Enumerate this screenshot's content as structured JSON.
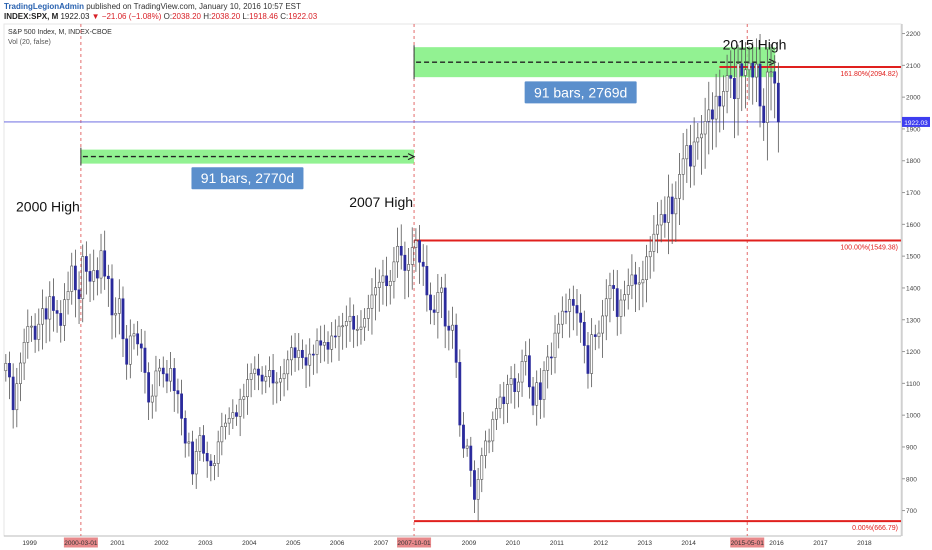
{
  "header": {
    "publisher": "TradingLegionAdmin",
    "published_text": "published on TradingView.com, January 10, 2016 10:57 EST",
    "symbol": "INDEX:SPX, M",
    "last": "1922.03",
    "change_arrow": "▼",
    "change": "−21.06 (−1.08%)",
    "open_label": "O:",
    "open": "2038.20",
    "high_label": "H:",
    "high": "2038.20",
    "low_label": "L:",
    "low": "1918.46",
    "close_label": "C:",
    "close": "1922.03"
  },
  "legend": {
    "series_title": "S&P 500 Index, M, INDEX-CBOE",
    "volume": "Vol (20, false)"
  },
  "colors": {
    "up": "#ffffff",
    "down": "#2b2b9c",
    "wick": "#555555",
    "fib": "#e0201e",
    "vline": "#e05c5c",
    "range_fill": "#7ff07f",
    "range_box": "#5b8fcc",
    "price_line": "#5a5adc"
  },
  "chart_data": {
    "type": "candlestick",
    "timeframe": "M",
    "x_range": [
      "1998-06",
      "2018-11"
    ],
    "x_tick_labels": [
      "998",
      "1999",
      "2000-03-01",
      "2001",
      "2002",
      "2003",
      "2004",
      "2005",
      "2006",
      "2007",
      "2007-10-01",
      "2009",
      "2010",
      "2011",
      "2012",
      "2013",
      "2014",
      "2015-05-01",
      "2016",
      "2017",
      "2018"
    ],
    "x_tick_values": [
      "1998-01",
      "1999-01",
      "2000-03",
      "2001-01",
      "2002-01",
      "2003-01",
      "2004-01",
      "2005-01",
      "2006-01",
      "2007-01",
      "2007-10",
      "2009-01",
      "2010-01",
      "2011-01",
      "2012-01",
      "2013-01",
      "2014-01",
      "2015-05",
      "2016-01",
      "2017-01",
      "2018-01"
    ],
    "x_highlight_labels": [
      "2000-03-01",
      "2007-10-01",
      "2015-05-01"
    ],
    "y_range": [
      620,
      2230
    ],
    "y_ticks": [
      700,
      800,
      900,
      1000,
      1100,
      1200,
      1300,
      1400,
      1500,
      1600,
      1700,
      1800,
      1900,
      2000,
      2100,
      2200
    ],
    "current_price": 1922.03,
    "current_price_label": "1922.03",
    "monthly_close": [
      [
        1998,
        1163
      ],
      [
        1998,
        1120
      ],
      [
        1998,
        1017
      ],
      [
        1998,
        1099
      ],
      [
        1998,
        1164
      ],
      [
        1998,
        1229
      ],
      [
        1998,
        1279
      ],
      [
        1999,
        1280
      ],
      [
        1999,
        1238
      ],
      [
        1999,
        1286
      ],
      [
        1999,
        1335
      ],
      [
        1999,
        1302
      ],
      [
        1999,
        1373
      ],
      [
        1999,
        1329
      ],
      [
        1999,
        1320
      ],
      [
        1999,
        1282
      ],
      [
        1999,
        1363
      ],
      [
        1999,
        1389
      ],
      [
        1999,
        1469
      ],
      [
        2000,
        1394
      ],
      [
        2000,
        1366
      ],
      [
        2000,
        1499
      ],
      [
        2000,
        1452
      ],
      [
        2000,
        1421
      ],
      [
        2000,
        1455
      ],
      [
        2000,
        1431
      ],
      [
        2000,
        1517
      ],
      [
        2000,
        1437
      ],
      [
        2000,
        1429
      ],
      [
        2000,
        1315
      ],
      [
        2000,
        1320
      ],
      [
        2001,
        1366
      ],
      [
        2001,
        1240
      ],
      [
        2001,
        1160
      ],
      [
        2001,
        1249
      ],
      [
        2001,
        1256
      ],
      [
        2001,
        1224
      ],
      [
        2001,
        1211
      ],
      [
        2001,
        1134
      ],
      [
        2001,
        1041
      ],
      [
        2001,
        1060
      ],
      [
        2001,
        1139
      ],
      [
        2001,
        1148
      ],
      [
        2002,
        1130
      ],
      [
        2002,
        1107
      ],
      [
        2002,
        1147
      ],
      [
        2002,
        1077
      ],
      [
        2002,
        1067
      ],
      [
        2002,
        990
      ],
      [
        2002,
        912
      ],
      [
        2002,
        916
      ],
      [
        2002,
        815
      ],
      [
        2002,
        886
      ],
      [
        2002,
        936
      ],
      [
        2002,
        880
      ],
      [
        2003,
        856
      ],
      [
        2003,
        841
      ],
      [
        2003,
        848
      ],
      [
        2003,
        916
      ],
      [
        2003,
        964
      ],
      [
        2003,
        975
      ],
      [
        2003,
        990
      ],
      [
        2003,
        1008
      ],
      [
        2003,
        996
      ],
      [
        2003,
        1050
      ],
      [
        2003,
        1058
      ],
      [
        2003,
        1112
      ],
      [
        2004,
        1131
      ],
      [
        2004,
        1145
      ],
      [
        2004,
        1126
      ],
      [
        2004,
        1107
      ],
      [
        2004,
        1121
      ],
      [
        2004,
        1141
      ],
      [
        2004,
        1101
      ],
      [
        2004,
        1104
      ],
      [
        2004,
        1115
      ],
      [
        2004,
        1130
      ],
      [
        2004,
        1174
      ],
      [
        2004,
        1212
      ],
      [
        2005,
        1181
      ],
      [
        2005,
        1204
      ],
      [
        2005,
        1181
      ],
      [
        2005,
        1157
      ],
      [
        2005,
        1192
      ],
      [
        2005,
        1191
      ],
      [
        2005,
        1234
      ],
      [
        2005,
        1220
      ],
      [
        2005,
        1229
      ],
      [
        2005,
        1207
      ],
      [
        2005,
        1249
      ],
      [
        2005,
        1248
      ],
      [
        2006,
        1280
      ],
      [
        2006,
        1281
      ],
      [
        2006,
        1295
      ],
      [
        2006,
        1311
      ],
      [
        2006,
        1270
      ],
      [
        2006,
        1270
      ],
      [
        2006,
        1277
      ],
      [
        2006,
        1304
      ],
      [
        2006,
        1336
      ],
      [
        2006,
        1378
      ],
      [
        2006,
        1401
      ],
      [
        2006,
        1418
      ],
      [
        2007,
        1438
      ],
      [
        2007,
        1407
      ],
      [
        2007,
        1421
      ],
      [
        2007,
        1482
      ],
      [
        2007,
        1531
      ],
      [
        2007,
        1503
      ],
      [
        2007,
        1455
      ],
      [
        2007,
        1474
      ],
      [
        2007,
        1527
      ],
      [
        2007,
        1549
      ],
      [
        2007,
        1481
      ],
      [
        2007,
        1468
      ],
      [
        2008,
        1378
      ],
      [
        2008,
        1331
      ],
      [
        2008,
        1323
      ],
      [
        2008,
        1386
      ],
      [
        2008,
        1400
      ],
      [
        2008,
        1280
      ],
      [
        2008,
        1267
      ],
      [
        2008,
        1283
      ],
      [
        2008,
        1166
      ],
      [
        2008,
        969
      ],
      [
        2008,
        896
      ],
      [
        2008,
        903
      ],
      [
        2009,
        826
      ],
      [
        2009,
        735
      ],
      [
        2009,
        798
      ],
      [
        2009,
        873
      ],
      [
        2009,
        919
      ],
      [
        2009,
        919
      ],
      [
        2009,
        987
      ],
      [
        2009,
        1021
      ],
      [
        2009,
        1057
      ],
      [
        2009,
        1036
      ],
      [
        2009,
        1096
      ],
      [
        2009,
        1115
      ],
      [
        2010,
        1074
      ],
      [
        2010,
        1104
      ],
      [
        2010,
        1169
      ],
      [
        2010,
        1187
      ],
      [
        2010,
        1089
      ],
      [
        2010,
        1031
      ],
      [
        2010,
        1102
      ],
      [
        2010,
        1049
      ],
      [
        2010,
        1141
      ],
      [
        2010,
        1183
      ],
      [
        2010,
        1181
      ],
      [
        2010,
        1258
      ],
      [
        2011,
        1286
      ],
      [
        2011,
        1327
      ],
      [
        2011,
        1326
      ],
      [
        2011,
        1364
      ],
      [
        2011,
        1345
      ],
      [
        2011,
        1321
      ],
      [
        2011,
        1292
      ],
      [
        2011,
        1219
      ],
      [
        2011,
        1131
      ],
      [
        2011,
        1253
      ],
      [
        2011,
        1247
      ],
      [
        2011,
        1258
      ],
      [
        2012,
        1312
      ],
      [
        2012,
        1366
      ],
      [
        2012,
        1408
      ],
      [
        2012,
        1398
      ],
      [
        2012,
        1310
      ],
      [
        2012,
        1362
      ],
      [
        2012,
        1379
      ],
      [
        2012,
        1407
      ],
      [
        2012,
        1441
      ],
      [
        2012,
        1412
      ],
      [
        2012,
        1416
      ],
      [
        2012,
        1426
      ],
      [
        2013,
        1498
      ],
      [
        2013,
        1515
      ],
      [
        2013,
        1569
      ],
      [
        2013,
        1598
      ],
      [
        2013,
        1631
      ],
      [
        2013,
        1606
      ],
      [
        2013,
        1686
      ],
      [
        2013,
        1633
      ],
      [
        2013,
        1682
      ],
      [
        2013,
        1757
      ],
      [
        2013,
        1806
      ],
      [
        2013,
        1848
      ],
      [
        2014,
        1783
      ],
      [
        2014,
        1859
      ],
      [
        2014,
        1872
      ],
      [
        2014,
        1884
      ],
      [
        2014,
        1924
      ],
      [
        2014,
        1960
      ],
      [
        2014,
        1931
      ],
      [
        2014,
        2003
      ],
      [
        2014,
        1972
      ],
      [
        2014,
        2018
      ],
      [
        2014,
        2068
      ],
      [
        2014,
        2059
      ],
      [
        2015,
        1995
      ],
      [
        2015,
        2105
      ],
      [
        2015,
        2068
      ],
      [
        2015,
        2086
      ],
      [
        2015,
        2107
      ],
      [
        2015,
        2063
      ],
      [
        2015,
        2104
      ],
      [
        2015,
        1972
      ],
      [
        2015,
        1920
      ],
      [
        2015,
        2079
      ],
      [
        2015,
        2080
      ],
      [
        2015,
        2044
      ],
      [
        2016,
        1922
      ]
    ],
    "lows": [
      [
        "2002-10",
        768
      ],
      [
        "2009-03",
        667
      ]
    ],
    "fib_levels": [
      {
        "label": "161.80%(2094.82)",
        "value": 2094.82
      },
      {
        "label": "100.00%(1549.38)",
        "value": 1549.38
      },
      {
        "label": "0.00%(666.79)",
        "value": 666.79
      }
    ],
    "vertical_markers": [
      "2000-03",
      "2007-10",
      "2015-05"
    ],
    "annotations": [
      {
        "text": "2000 High",
        "date": "1999-06",
        "price": 1640
      },
      {
        "text": "2007 High",
        "date": "2007-01",
        "price": 1655
      },
      {
        "text": "2015 High",
        "date": "2015-07",
        "price": 2150
      }
    ],
    "date_ranges": [
      {
        "from": "2000-03",
        "to": "2007-10",
        "price": 1813,
        "label": "91 bars, 2770d",
        "label_price": 1745
      },
      {
        "from": "2007-10",
        "to": "2015-05",
        "price": 2110,
        "label": "91 bars, 2769d",
        "label_price": 2015
      }
    ]
  }
}
